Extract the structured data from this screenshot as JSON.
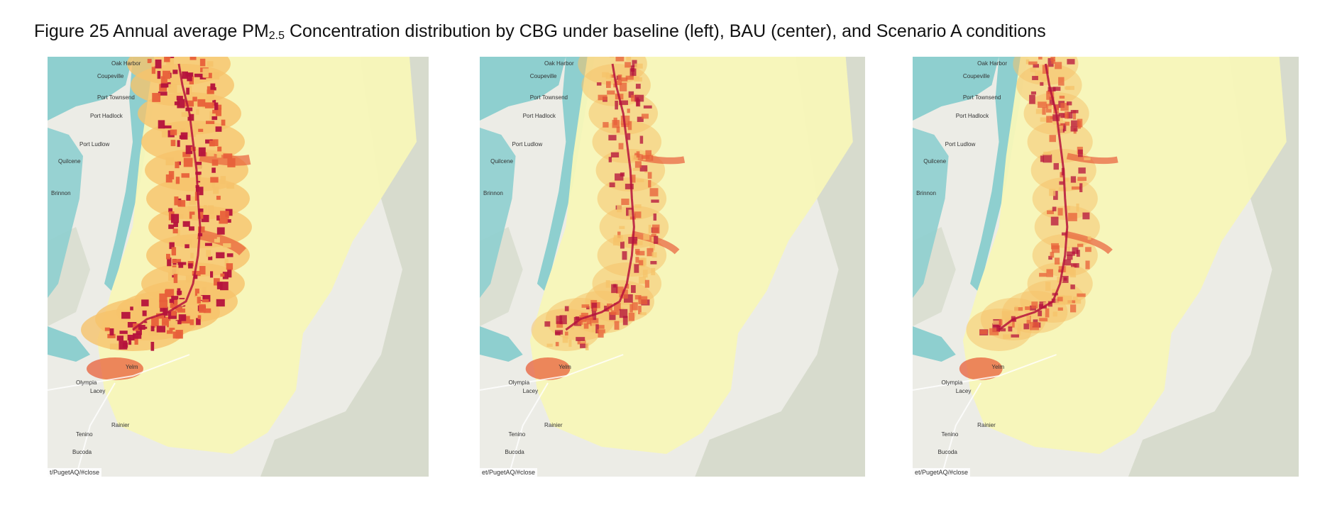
{
  "figure": {
    "caption_prefix": "Figure 25 Annual average PM",
    "caption_sub": "2.5",
    "caption_suffix": " Concentration distribution by CBG under baseline (left), BAU (center), and Scenario A conditions"
  },
  "maps": [
    {
      "scenario": "baseline",
      "attribution": "t/PugetAQ/#close",
      "intensity": 1.0
    },
    {
      "scenario": "BAU",
      "attribution": "et/PugetAQ/#close",
      "intensity": 0.55
    },
    {
      "scenario": "Scenario A",
      "attribution": "et/PugetAQ/#close",
      "intensity": 0.5
    }
  ],
  "place_labels": [
    "Oak Harbor",
    "Coupeville",
    "Port Townsend",
    "Port Hadlock",
    "Port Ludlow",
    "Quilcene",
    "Brinnon",
    "Olympia",
    "Lacey",
    "Tenino",
    "Rainier",
    "Bucoda",
    "Yelm"
  ],
  "colors": {
    "water": "#8ecfcf",
    "land": "#ecece6",
    "forest": "#c9d1bd",
    "pm_low": "#f8f7b8",
    "pm_mid": "#f6c36b",
    "pm_high": "#e8603a",
    "pm_max": "#b5123c"
  }
}
